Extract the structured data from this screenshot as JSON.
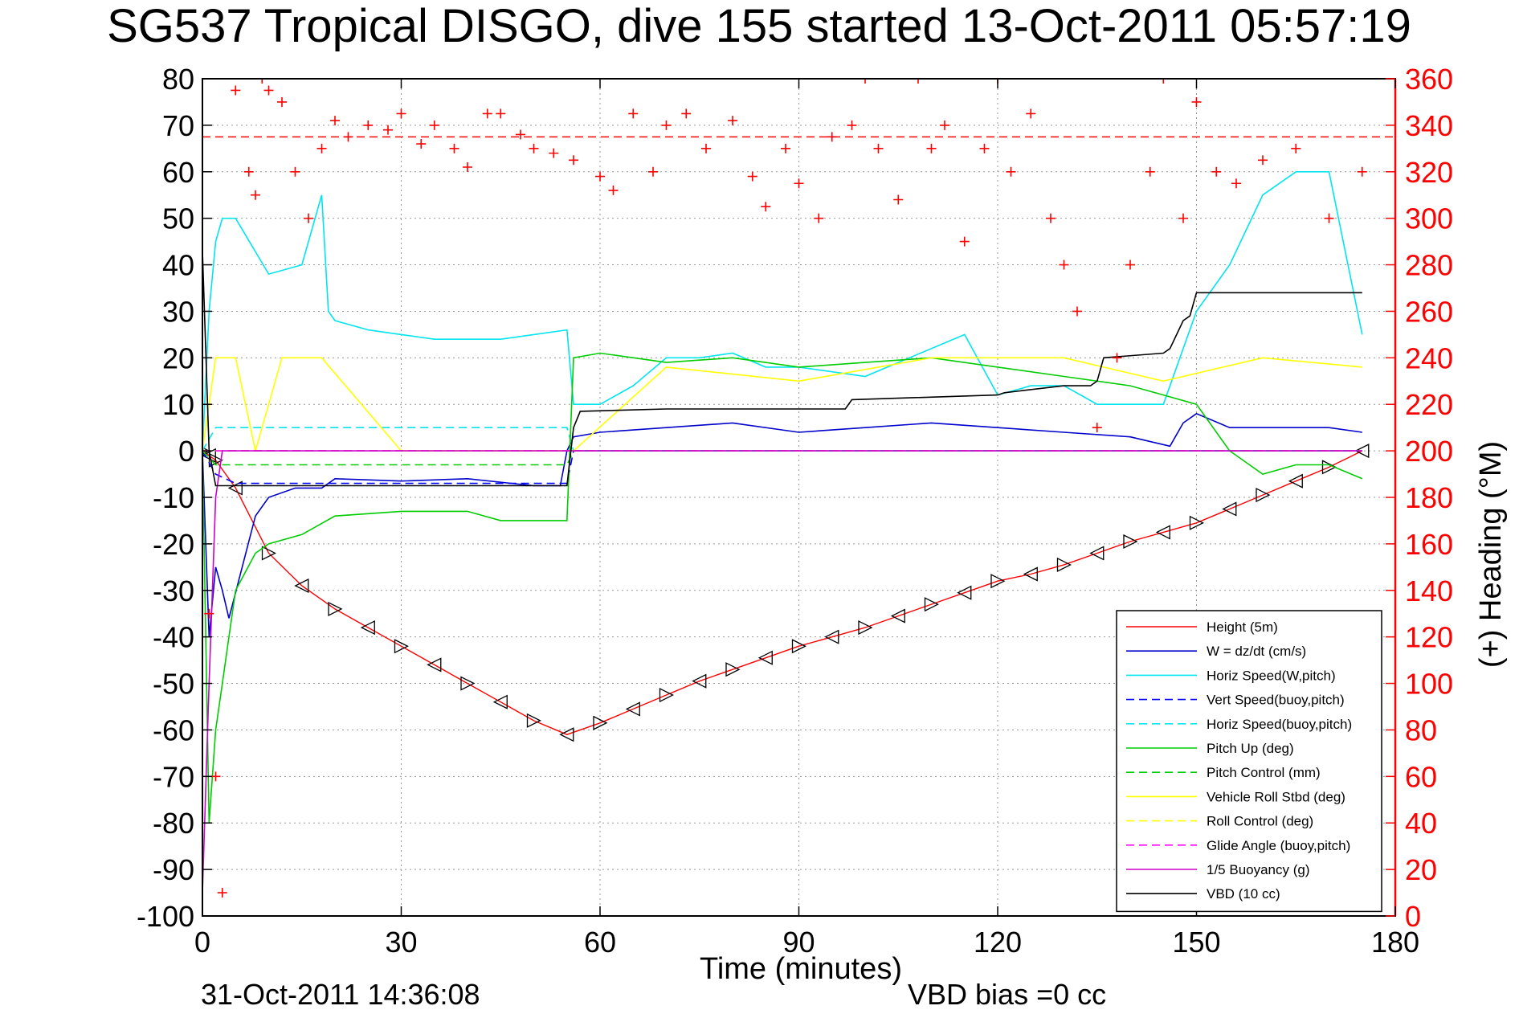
{
  "chart_data": {
    "type": "line",
    "title": "SG537 Tropical DISGO, dive 155 started 13-Oct-2011 05:57:19",
    "xlabel": "Time (minutes)",
    "ylabel_right": "(+) Heading (°M)",
    "xlim": [
      0,
      180
    ],
    "ylim_left": [
      -100,
      80
    ],
    "ylim_right": [
      0,
      360
    ],
    "x_ticks": [
      "0",
      "30",
      "60",
      "90",
      "120",
      "150",
      "180"
    ],
    "y_ticks_left": [
      "80",
      "70",
      "60",
      "50",
      "40",
      "30",
      "20",
      "10",
      "0",
      "-10",
      "-20",
      "-30",
      "-40",
      "-50",
      "-60",
      "-70",
      "-80",
      "-90",
      "-100"
    ],
    "y_ticks_right": [
      "360",
      "340",
      "320",
      "300",
      "280",
      "260",
      "240",
      "220",
      "200",
      "180",
      "160",
      "140",
      "120",
      "100",
      "80",
      "60",
      "40",
      "20",
      "0"
    ],
    "grid": true,
    "legend_position": "bottom-right",
    "footer_left": "31-Oct-2011 14:36:08",
    "footer_right": "VBD bias =0 cc",
    "heading_reference": 335,
    "colors": {
      "height": "#ff0000",
      "w": "#0000cc",
      "horiz_w": "#00e5ee",
      "vert_buoy": "#0000ff",
      "horiz_buoy": "#00e5ee",
      "pitch_up": "#00cc00",
      "pitch_control": "#00cc00",
      "roll": "#ffff00",
      "roll_control": "#ffff00",
      "glide": "#ff00ff",
      "buoyancy": "#cc00cc",
      "vbd": "#000000",
      "heading": "#ff0000",
      "right_axis": "#ff0000"
    },
    "series": [
      {
        "name": "Height (5m)",
        "style": "solid",
        "color": "#ff0000",
        "x": [
          0,
          1,
          2,
          5,
          10,
          15,
          20,
          25,
          30,
          35,
          40,
          45,
          50,
          55,
          60,
          65,
          70,
          75,
          80,
          85,
          90,
          95,
          100,
          105,
          110,
          115,
          120,
          125,
          130,
          135,
          140,
          145,
          150,
          155,
          160,
          165,
          170,
          175
        ],
        "y": [
          0,
          -1,
          -2,
          -8,
          -22,
          -29,
          -34,
          -38,
          -42,
          -46,
          -50,
          -54,
          -58,
          -61,
          -58.5,
          -55.5,
          -52.5,
          -49.5,
          -47,
          -44.5,
          -42,
          -40,
          -38,
          -35.5,
          -33,
          -30.5,
          -28,
          -26.5,
          -24.5,
          -22,
          -19.5,
          -17.5,
          -15.5,
          -12.5,
          -9.5,
          -6.5,
          -3.5,
          0
        ]
      },
      {
        "name": "W = dz/dt (cm/s)",
        "style": "solid",
        "color": "#0000cc",
        "x": [
          0,
          1,
          2,
          3,
          4,
          6,
          8,
          10,
          14,
          18,
          20,
          30,
          40,
          50,
          54,
          55,
          56,
          60,
          70,
          80,
          90,
          100,
          110,
          120,
          130,
          140,
          146,
          148,
          150,
          155,
          160,
          170,
          175
        ],
        "y": [
          0,
          -40,
          -25,
          -30,
          -36,
          -25,
          -14,
          -10,
          -8,
          -8,
          -6,
          -6.5,
          -6,
          -7.5,
          -7.5,
          0,
          3,
          4,
          5,
          6,
          4,
          5,
          6,
          5,
          4,
          3,
          1,
          6,
          8,
          5,
          5,
          5,
          4
        ]
      },
      {
        "name": "Horiz Speed(W,pitch)",
        "style": "solid",
        "color": "#00e5ee",
        "x": [
          0,
          1,
          2,
          3,
          5,
          10,
          15,
          18,
          19,
          20,
          25,
          30,
          35,
          40,
          45,
          50,
          55,
          56,
          60,
          65,
          70,
          75,
          80,
          85,
          90,
          95,
          100,
          110,
          115,
          120,
          125,
          130,
          135,
          140,
          145,
          150,
          155,
          160,
          165,
          170,
          175
        ],
        "y": [
          0,
          30,
          45,
          50,
          50,
          38,
          40,
          55,
          30,
          28,
          26,
          25,
          24,
          24,
          24,
          25,
          26,
          10,
          10,
          14,
          20,
          20,
          21,
          18,
          18,
          17,
          16,
          22,
          25,
          12,
          14,
          14,
          10,
          10,
          10,
          30,
          40,
          55,
          60,
          60,
          25
        ]
      },
      {
        "name": "Vert Speed(buoy,pitch)",
        "style": "dashed",
        "color": "#0000ff",
        "x": [
          0,
          2,
          5,
          55,
          56,
          175
        ],
        "y": [
          0,
          -5,
          -7,
          -7,
          0,
          0
        ]
      },
      {
        "name": "Horiz Speed(buoy,pitch)",
        "style": "dashed",
        "color": "#00e5ee",
        "x": [
          0,
          2,
          55,
          56,
          175
        ],
        "y": [
          0,
          5,
          5,
          0,
          0
        ]
      },
      {
        "name": "Pitch Up (deg)",
        "style": "solid",
        "color": "#00cc00",
        "x": [
          0,
          1,
          2,
          3,
          4,
          5,
          8,
          10,
          15,
          20,
          30,
          40,
          45,
          50,
          55,
          56,
          60,
          70,
          80,
          90,
          100,
          110,
          120,
          130,
          140,
          145,
          150,
          155,
          160,
          165,
          170,
          175
        ],
        "y": [
          0,
          -80,
          -60,
          -50,
          -40,
          -30,
          -22,
          -20,
          -18,
          -14,
          -13,
          -13,
          -15,
          -15,
          -15,
          20,
          21,
          19,
          20,
          18,
          19,
          20,
          18,
          16,
          14,
          12,
          10,
          0,
          -5,
          -3,
          -3,
          -6
        ]
      },
      {
        "name": "Pitch Control (mm)",
        "style": "dashed",
        "color": "#00cc00",
        "x": [
          0,
          2,
          55,
          56,
          175
        ],
        "y": [
          0,
          -3,
          -3,
          0,
          0
        ]
      },
      {
        "name": "Vehicle Roll Stbd (deg)",
        "style": "solid",
        "color": "#ffff00",
        "x": [
          0,
          2,
          5,
          8,
          12,
          18,
          30,
          50,
          56,
          70,
          90,
          110,
          130,
          145,
          160,
          175
        ],
        "y": [
          0,
          20,
          20,
          0,
          20,
          20,
          0,
          0,
          0,
          18,
          15,
          20,
          20,
          15,
          20,
          18
        ]
      },
      {
        "name": "Roll Control (deg)",
        "style": "dashed",
        "color": "#ffff00",
        "x": [
          0,
          175
        ],
        "y": [
          0,
          0
        ]
      },
      {
        "name": "Glide Angle (buoy,pitch)",
        "style": "dashed",
        "color": "#ff00ff",
        "x": [
          0,
          175
        ],
        "y": [
          0,
          0
        ]
      },
      {
        "name": "1/5 Buoyancy (g)",
        "style": "solid",
        "color": "#cc00cc",
        "x": [
          0,
          1,
          2,
          3,
          175
        ],
        "y": [
          -95,
          -50,
          -10,
          0,
          0
        ]
      },
      {
        "name": "VBD (10 cc)",
        "style": "solid",
        "color": "#000000",
        "x": [
          0,
          1,
          2,
          55,
          56,
          57,
          70,
          80,
          90,
          97,
          98,
          120,
          121,
          130,
          134,
          135,
          136,
          145,
          146,
          148,
          149,
          150,
          175
        ],
        "y": [
          43,
          0,
          -7.5,
          -7.5,
          5,
          8.5,
          9,
          9,
          9,
          9,
          11,
          12,
          12.5,
          14,
          14,
          15,
          20,
          21,
          22,
          28,
          29,
          34,
          34
        ]
      },
      {
        "name": "Heading",
        "axis": "right",
        "style": "plus",
        "color": "#ff0000",
        "x": [
          1,
          2,
          3,
          5,
          7,
          8,
          9,
          10,
          12,
          14,
          16,
          18,
          20,
          22,
          25,
          28,
          30,
          33,
          35,
          38,
          40,
          43,
          45,
          48,
          50,
          53,
          56,
          60,
          62,
          65,
          68,
          70,
          73,
          76,
          80,
          83,
          85,
          88,
          90,
          93,
          95,
          98,
          100,
          102,
          105,
          108,
          110,
          112,
          115,
          118,
          120,
          122,
          125,
          128,
          130,
          132,
          135,
          138,
          140,
          143,
          145,
          148,
          150,
          153,
          156,
          160,
          165,
          170,
          175
        ],
        "y": [
          130,
          60,
          10,
          355,
          320,
          310,
          360,
          355,
          350,
          320,
          300,
          330,
          342,
          335,
          340,
          338,
          345,
          332,
          340,
          330,
          322,
          345,
          345,
          336,
          330,
          328,
          325,
          318,
          312,
          345,
          320,
          340,
          345,
          330,
          342,
          318,
          305,
          330,
          315,
          300,
          335,
          340,
          360,
          330,
          308,
          360,
          330,
          340,
          290,
          330,
          360,
          320,
          345,
          300,
          280,
          260,
          210,
          240,
          280,
          320,
          360,
          300,
          350,
          320,
          315,
          325,
          330,
          300,
          320
        ]
      }
    ]
  }
}
